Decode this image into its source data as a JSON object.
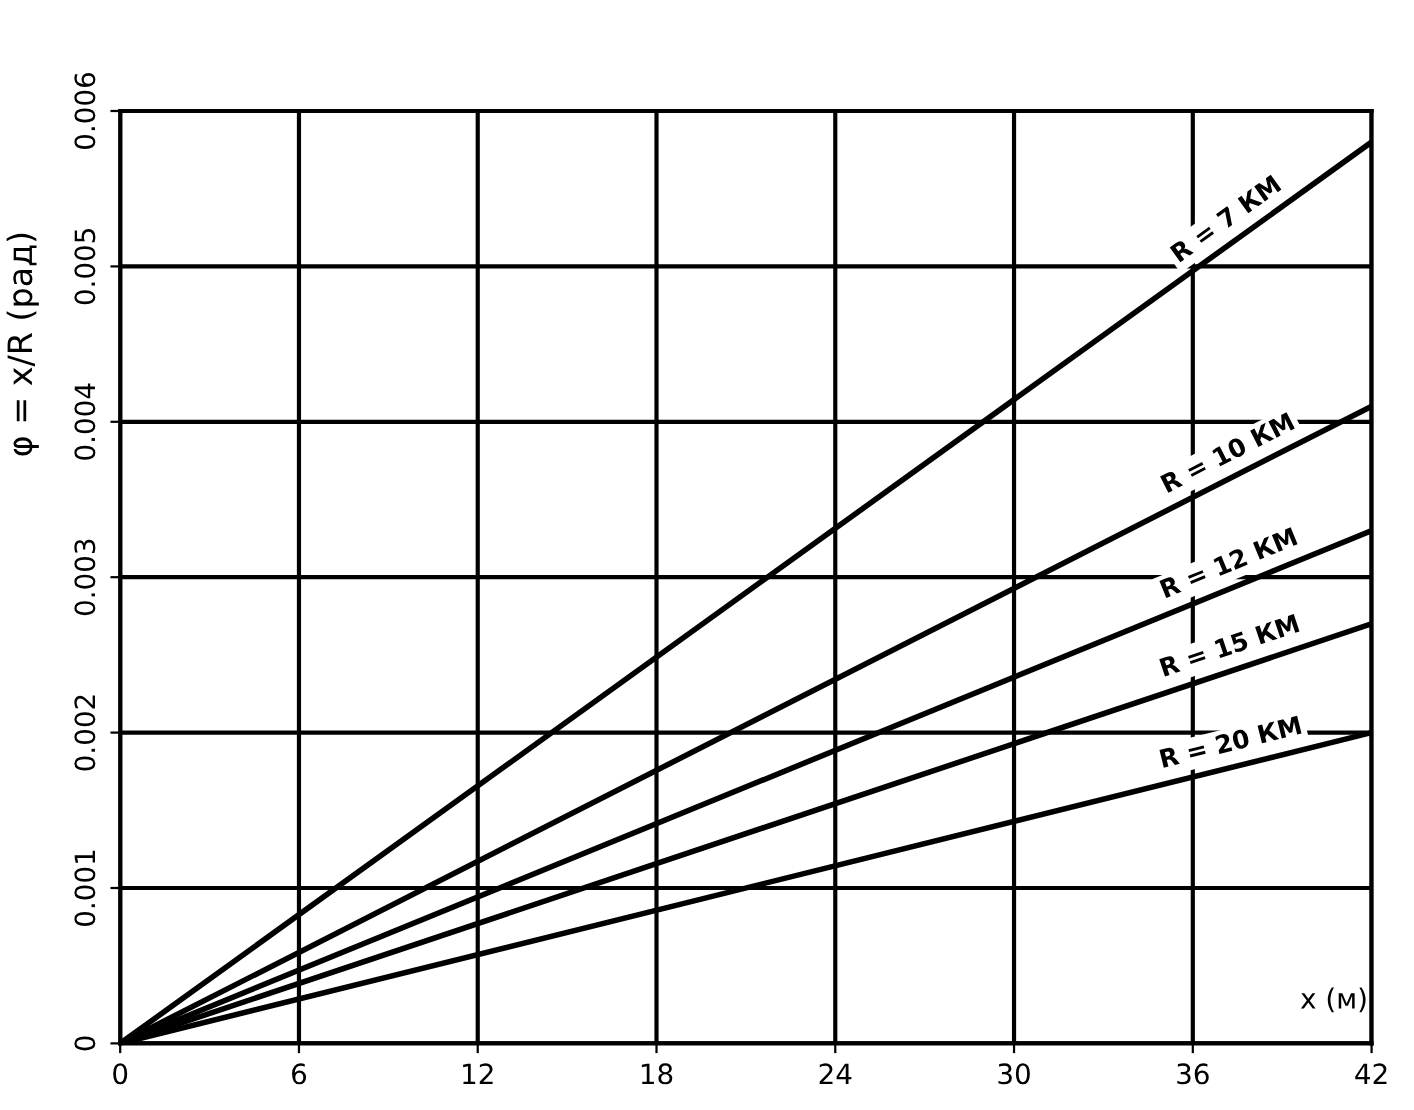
{
  "chart_data": {
    "type": "line",
    "ylabel": "φ = x/R (рад)",
    "xlabel": "x (м)",
    "x": [
      0,
      42
    ],
    "series": [
      {
        "name": "R = 7 КМ",
        "color": "#000000",
        "values": [
          0,
          0.0058
        ]
      },
      {
        "name": "R = 10 КМ",
        "color": "#000000",
        "values": [
          0,
          0.0041
        ]
      },
      {
        "name": "R = 12 КМ",
        "color": "#000000",
        "values": [
          0,
          0.0033
        ]
      },
      {
        "name": "R = 15 КМ",
        "color": "#000000",
        "values": [
          0,
          0.0027
        ]
      },
      {
        "name": "R = 20 КМ",
        "color": "#000000",
        "values": [
          0,
          0.002
        ]
      }
    ],
    "xlim": [
      0,
      42
    ],
    "xticks": [
      0,
      6,
      12,
      18,
      24,
      30,
      36,
      42
    ],
    "ylim": [
      0,
      0.006
    ],
    "yticks": [
      0,
      0.001,
      0.002,
      0.003,
      0.004,
      0.005,
      0.006
    ],
    "grid": true,
    "marker": "none",
    "line_style": "solid"
  }
}
